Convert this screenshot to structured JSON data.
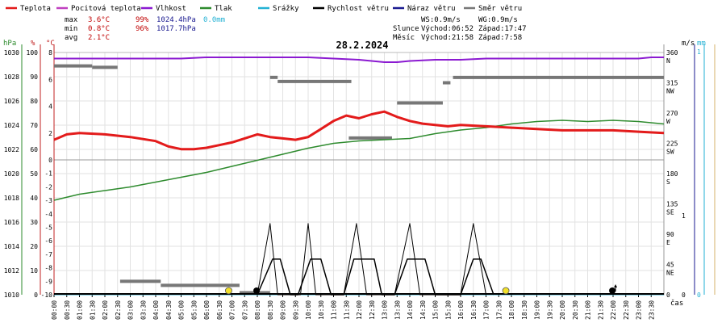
{
  "chart_data": {
    "type": "line",
    "title": "28.2.2024",
    "legend": [
      {
        "label": "Teplota",
        "color": "#e31b1b"
      },
      {
        "label": "Pocitová teplota",
        "color": "#c040c0"
      },
      {
        "label": "Vlhkost",
        "color": "#8b1ad1"
      },
      {
        "label": "Tlak",
        "color": "#2e8b2e"
      },
      {
        "label": "Srážky",
        "color": "#23b1d4"
      },
      {
        "label": "Rychlost větru",
        "color": "#000000"
      },
      {
        "label": "Náraz větru",
        "color": "#1a1a90"
      },
      {
        "label": "Směr větru",
        "color": "#777777"
      }
    ],
    "stats": {
      "labels": [
        "max",
        "min",
        "avg"
      ],
      "temperature": [
        "3.6°C",
        "0.8°C",
        "2.1°C"
      ],
      "humidity": [
        "99%",
        "96%",
        ""
      ],
      "pressure": [
        "1024.4hPa",
        "1017.7hPa",
        ""
      ],
      "precipitation": [
        "0.0mm",
        "",
        ""
      ]
    },
    "wind_info": {
      "ws": "WS:0.9m/s",
      "wg": "WG:0.9m/s"
    },
    "sun": {
      "label": "Slunce",
      "rise": "Východ:06:52",
      "set": "Západ:17:47"
    },
    "moon": {
      "label": "Měsíc",
      "rise": "Východ:21:58",
      "set": "Západ:7:58"
    },
    "axes": {
      "pressure": {
        "unit": "hPa",
        "ticks": [
          "1030",
          "1028",
          "1026",
          "1024",
          "1022",
          "1020",
          "1018",
          "1016",
          "1014",
          "1012",
          "1010"
        ],
        "color": "#2e8b2e"
      },
      "humidity": {
        "unit": "%",
        "ticks": [
          "100",
          "90",
          "80",
          "70",
          "60",
          "50",
          "40",
          "30",
          "20",
          "10",
          "0"
        ],
        "color": "#c02020"
      },
      "temperature": {
        "unit": "°C",
        "ticks": [
          "8",
          "6",
          "4",
          "2",
          "0",
          "-1",
          "-2",
          "-3",
          "-4",
          "-5",
          "-6",
          "-7",
          "-8",
          "-9",
          "-10"
        ],
        "color": "#c02020"
      },
      "direction": {
        "ticks": [
          "360",
          "315",
          "270",
          "225",
          "180",
          "135",
          "90",
          "45",
          "0"
        ],
        "labels": [
          "N",
          "NW",
          "W",
          "SW",
          "S",
          "SE",
          "E",
          "NE"
        ]
      },
      "wind_unit": "m/s",
      "wind_ticks": [
        "1",
        "0"
      ],
      "precip_unit": "mm",
      "precip_ticks": [
        "1",
        "0"
      ],
      "x_label": "čas",
      "x_ticks": [
        "00:00",
        "00:30",
        "01:00",
        "01:30",
        "02:00",
        "02:30",
        "03:00",
        "03:30",
        "04:00",
        "04:30",
        "05:00",
        "05:30",
        "06:00",
        "06:30",
        "07:00",
        "07:30",
        "08:00",
        "08:30",
        "09:00",
        "09:30",
        "10:00",
        "10:30",
        "11:00",
        "11:30",
        "12:00",
        "12:30",
        "13:00",
        "13:30",
        "14:00",
        "14:30",
        "15:00",
        "15:30",
        "16:00",
        "16:30",
        "17:00",
        "17:30",
        "18:00",
        "18:30",
        "19:00",
        "19:30",
        "20:00",
        "20:30",
        "21:00",
        "21:30",
        "22:00",
        "22:30",
        "23:00",
        "23:30"
      ]
    },
    "x_range_hours": [
      0,
      24
    ],
    "temperature": {
      "x": [
        0,
        0.5,
        1,
        2,
        3,
        4,
        4.5,
        5,
        5.5,
        6,
        6.5,
        7,
        7.5,
        8,
        8.5,
        9,
        9.5,
        10,
        10.5,
        11,
        11.5,
        12,
        12.5,
        13,
        13.5,
        14,
        14.5,
        15,
        15.5,
        16,
        17,
        18,
        19,
        20,
        21,
        22,
        23,
        24
      ],
      "y": [
        1.5,
        1.9,
        2.0,
        1.9,
        1.7,
        1.4,
        1.0,
        0.8,
        0.8,
        0.9,
        1.1,
        1.3,
        1.6,
        1.9,
        1.7,
        1.6,
        1.5,
        1.7,
        2.3,
        2.9,
        3.3,
        3.1,
        3.4,
        3.6,
        3.2,
        2.9,
        2.7,
        2.6,
        2.5,
        2.6,
        2.5,
        2.4,
        2.3,
        2.2,
        2.2,
        2.2,
        2.1,
        2.0
      ]
    },
    "pressure": {
      "x": [
        0,
        1,
        2,
        3,
        4,
        5,
        6,
        7,
        8,
        9,
        10,
        11,
        12,
        13,
        14,
        15,
        16,
        17,
        18,
        19,
        20,
        21,
        22,
        23,
        24
      ],
      "y": [
        1017.8,
        1018.3,
        1018.6,
        1018.9,
        1019.3,
        1019.7,
        1020.1,
        1020.6,
        1021.1,
        1021.6,
        1022.1,
        1022.5,
        1022.7,
        1022.8,
        1022.9,
        1023.3,
        1023.6,
        1023.8,
        1024.1,
        1024.3,
        1024.4,
        1024.3,
        1024.4,
        1024.3,
        1024.1
      ]
    },
    "humidity": {
      "x": [
        0,
        1,
        2,
        3,
        4,
        5,
        6,
        7,
        8,
        9,
        10,
        11,
        12,
        13,
        13.5,
        14,
        15,
        16,
        17,
        18,
        19,
        20,
        21,
        22,
        23,
        23.5,
        24
      ],
      "y": [
        97.5,
        97.5,
        97.5,
        97.5,
        97.5,
        97.5,
        98,
        98,
        98,
        98,
        98,
        97.5,
        97,
        96,
        96,
        96.5,
        97,
        97,
        97.5,
        97.5,
        97.5,
        97.5,
        97.5,
        97.5,
        97.5,
        98,
        98
      ]
    },
    "wind_direction_deg": [
      {
        "x": [
          0,
          1.5
        ],
        "deg": 340
      },
      {
        "x": [
          1.5,
          2.5
        ],
        "deg": 338
      },
      {
        "x": [
          2.6,
          4.2
        ],
        "deg": 20
      },
      {
        "x": [
          4.2,
          7.3
        ],
        "deg": 14
      },
      {
        "x": [
          7.3,
          8.5
        ],
        "deg": 3
      },
      {
        "x": [
          8.5,
          8.8
        ],
        "deg": 323
      },
      {
        "x": [
          8.8,
          11.7
        ],
        "deg": 317
      },
      {
        "x": [
          11.6,
          13.3
        ],
        "deg": 233
      },
      {
        "x": [
          13.5,
          15.3
        ],
        "deg": 285
      },
      {
        "x": [
          15.3,
          15.6
        ],
        "deg": 315
      },
      {
        "x": [
          15.7,
          24
        ],
        "deg": 323
      }
    ],
    "wind_speed_ms": [
      {
        "x": 8,
        "y": 0
      },
      {
        "x": 8.6,
        "y": 0.45
      },
      {
        "x": 8.9,
        "y": 0.45
      },
      {
        "x": 9.3,
        "y": 0
      },
      {
        "x": 9.6,
        "y": 0
      },
      {
        "x": 10.1,
        "y": 0.45
      },
      {
        "x": 10.5,
        "y": 0.45
      },
      {
        "x": 10.9,
        "y": 0
      },
      {
        "x": 11.4,
        "y": 0
      },
      {
        "x": 11.8,
        "y": 0.45
      },
      {
        "x": 12.6,
        "y": 0.45
      },
      {
        "x": 12.9,
        "y": 0
      },
      {
        "x": 13.4,
        "y": 0
      },
      {
        "x": 13.9,
        "y": 0.45
      },
      {
        "x": 14.6,
        "y": 0.45
      },
      {
        "x": 15,
        "y": 0
      },
      {
        "x": 16,
        "y": 0
      },
      {
        "x": 16.5,
        "y": 0.45
      },
      {
        "x": 16.8,
        "y": 0.45
      },
      {
        "x": 17.3,
        "y": 0
      }
    ],
    "wind_gust_ms": [
      {
        "x": 8,
        "y": 0
      },
      {
        "x": 8.5,
        "y": 0.9
      },
      {
        "x": 8.8,
        "y": 0
      },
      {
        "x": 9.7,
        "y": 0
      },
      {
        "x": 10.0,
        "y": 0.9
      },
      {
        "x": 10.3,
        "y": 0
      },
      {
        "x": 11.4,
        "y": 0
      },
      {
        "x": 11.9,
        "y": 0.9
      },
      {
        "x": 12.3,
        "y": 0
      },
      {
        "x": 13.4,
        "y": 0
      },
      {
        "x": 14.0,
        "y": 0.9
      },
      {
        "x": 14.4,
        "y": 0
      },
      {
        "x": 16.0,
        "y": 0
      },
      {
        "x": 16.5,
        "y": 0.9
      },
      {
        "x": 17.0,
        "y": 0
      }
    ],
    "precipitation_mm": {
      "x": [
        0,
        24
      ],
      "y": [
        0,
        0
      ]
    },
    "markers": [
      {
        "kind": "sunrise",
        "x": 6.87,
        "color": "#f2e12b"
      },
      {
        "kind": "sunset",
        "x": 17.78,
        "color": "#f2e12b"
      },
      {
        "kind": "moonset",
        "x": 7.97,
        "color": "#000000"
      },
      {
        "kind": "moonrise",
        "x": 21.97,
        "color": "#000000"
      }
    ]
  }
}
